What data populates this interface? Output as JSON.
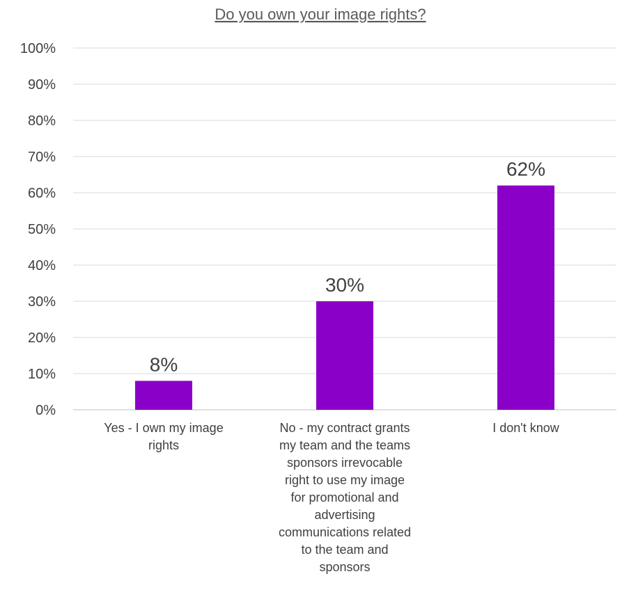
{
  "chart_data": {
    "type": "bar",
    "title": "Do you own your image rights?",
    "categories": [
      "Yes - I own my image rights",
      "No - my contract grants my team and the teams sponsors irrevocable right to use my image for promotional and advertising communications related to the team and sponsors",
      "I don't know"
    ],
    "category_lines": [
      [
        "Yes - I own my image",
        "rights"
      ],
      [
        "No - my contract grants",
        "my team and the teams",
        "sponsors irrevocable",
        "right to use my image",
        "for promotional and",
        "advertising",
        "communications related",
        "to the team and",
        "sponsors"
      ],
      [
        "I don't know"
      ]
    ],
    "values": [
      8,
      30,
      62
    ],
    "data_labels": [
      "8%",
      "30%",
      "62%"
    ],
    "ylim": [
      0,
      100
    ],
    "yticks": [
      "0%",
      "10%",
      "20%",
      "30%",
      "40%",
      "50%",
      "60%",
      "70%",
      "80%",
      "90%",
      "100%"
    ],
    "grid": true,
    "bar_color": "#8b00c9"
  }
}
